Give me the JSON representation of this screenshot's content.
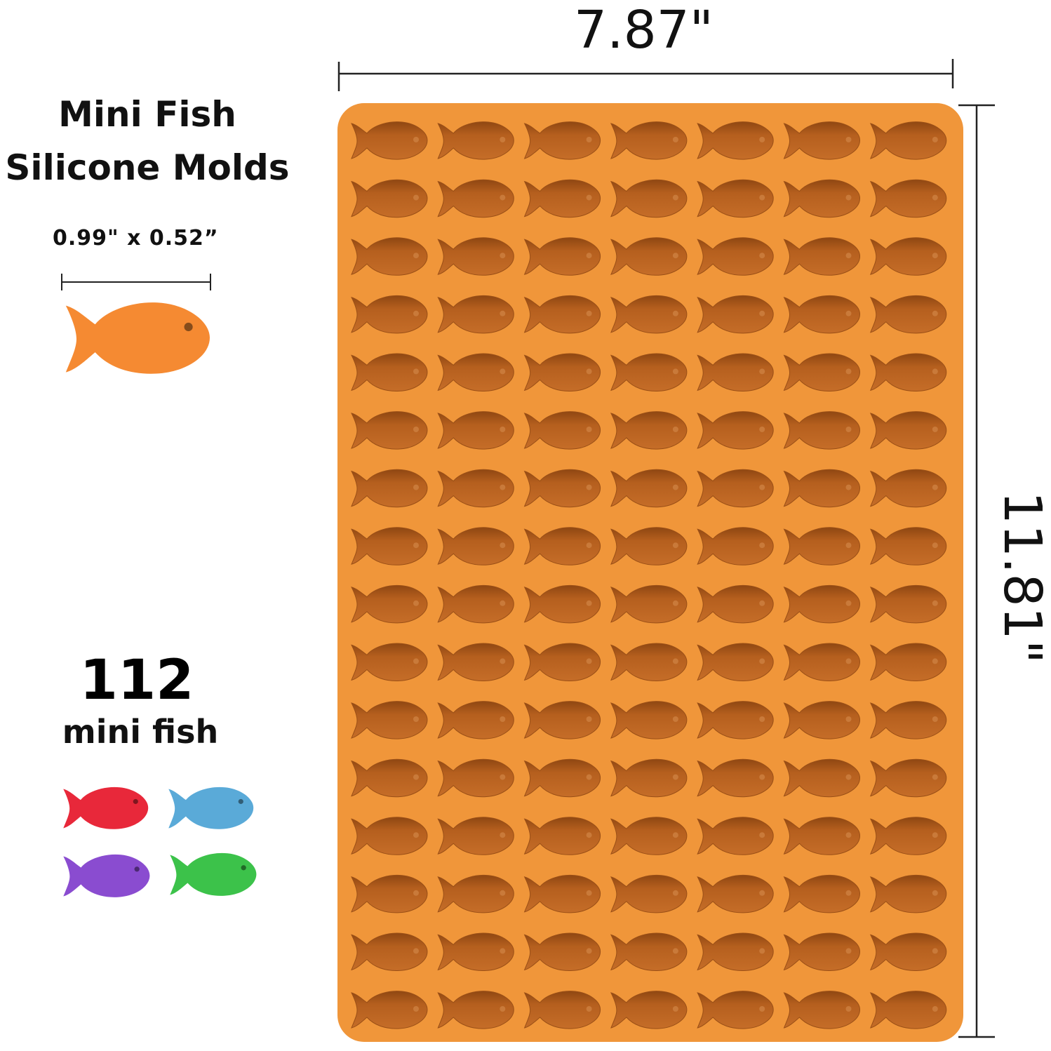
{
  "product": {
    "title_line1": "Mini Fish",
    "title_line2": "Silicone Molds",
    "piece_size": "0.99\" x 0.52”",
    "count": "112",
    "count_label": "mini fish"
  },
  "dimensions": {
    "width": "7.87\"",
    "height": "11.81\""
  },
  "mold": {
    "rows": 16,
    "columns": 7,
    "color": "#f0963a",
    "cavity_color": "#b35e1f"
  },
  "sample_fish": [
    {
      "name": "orange-fish",
      "color": "#f58a32"
    },
    {
      "name": "red-fish",
      "color": "#e8283a"
    },
    {
      "name": "blue-fish",
      "color": "#5aaad8"
    },
    {
      "name": "purple-fish",
      "color": "#8a4cd0"
    },
    {
      "name": "green-fish",
      "color": "#3cc24a"
    }
  ]
}
